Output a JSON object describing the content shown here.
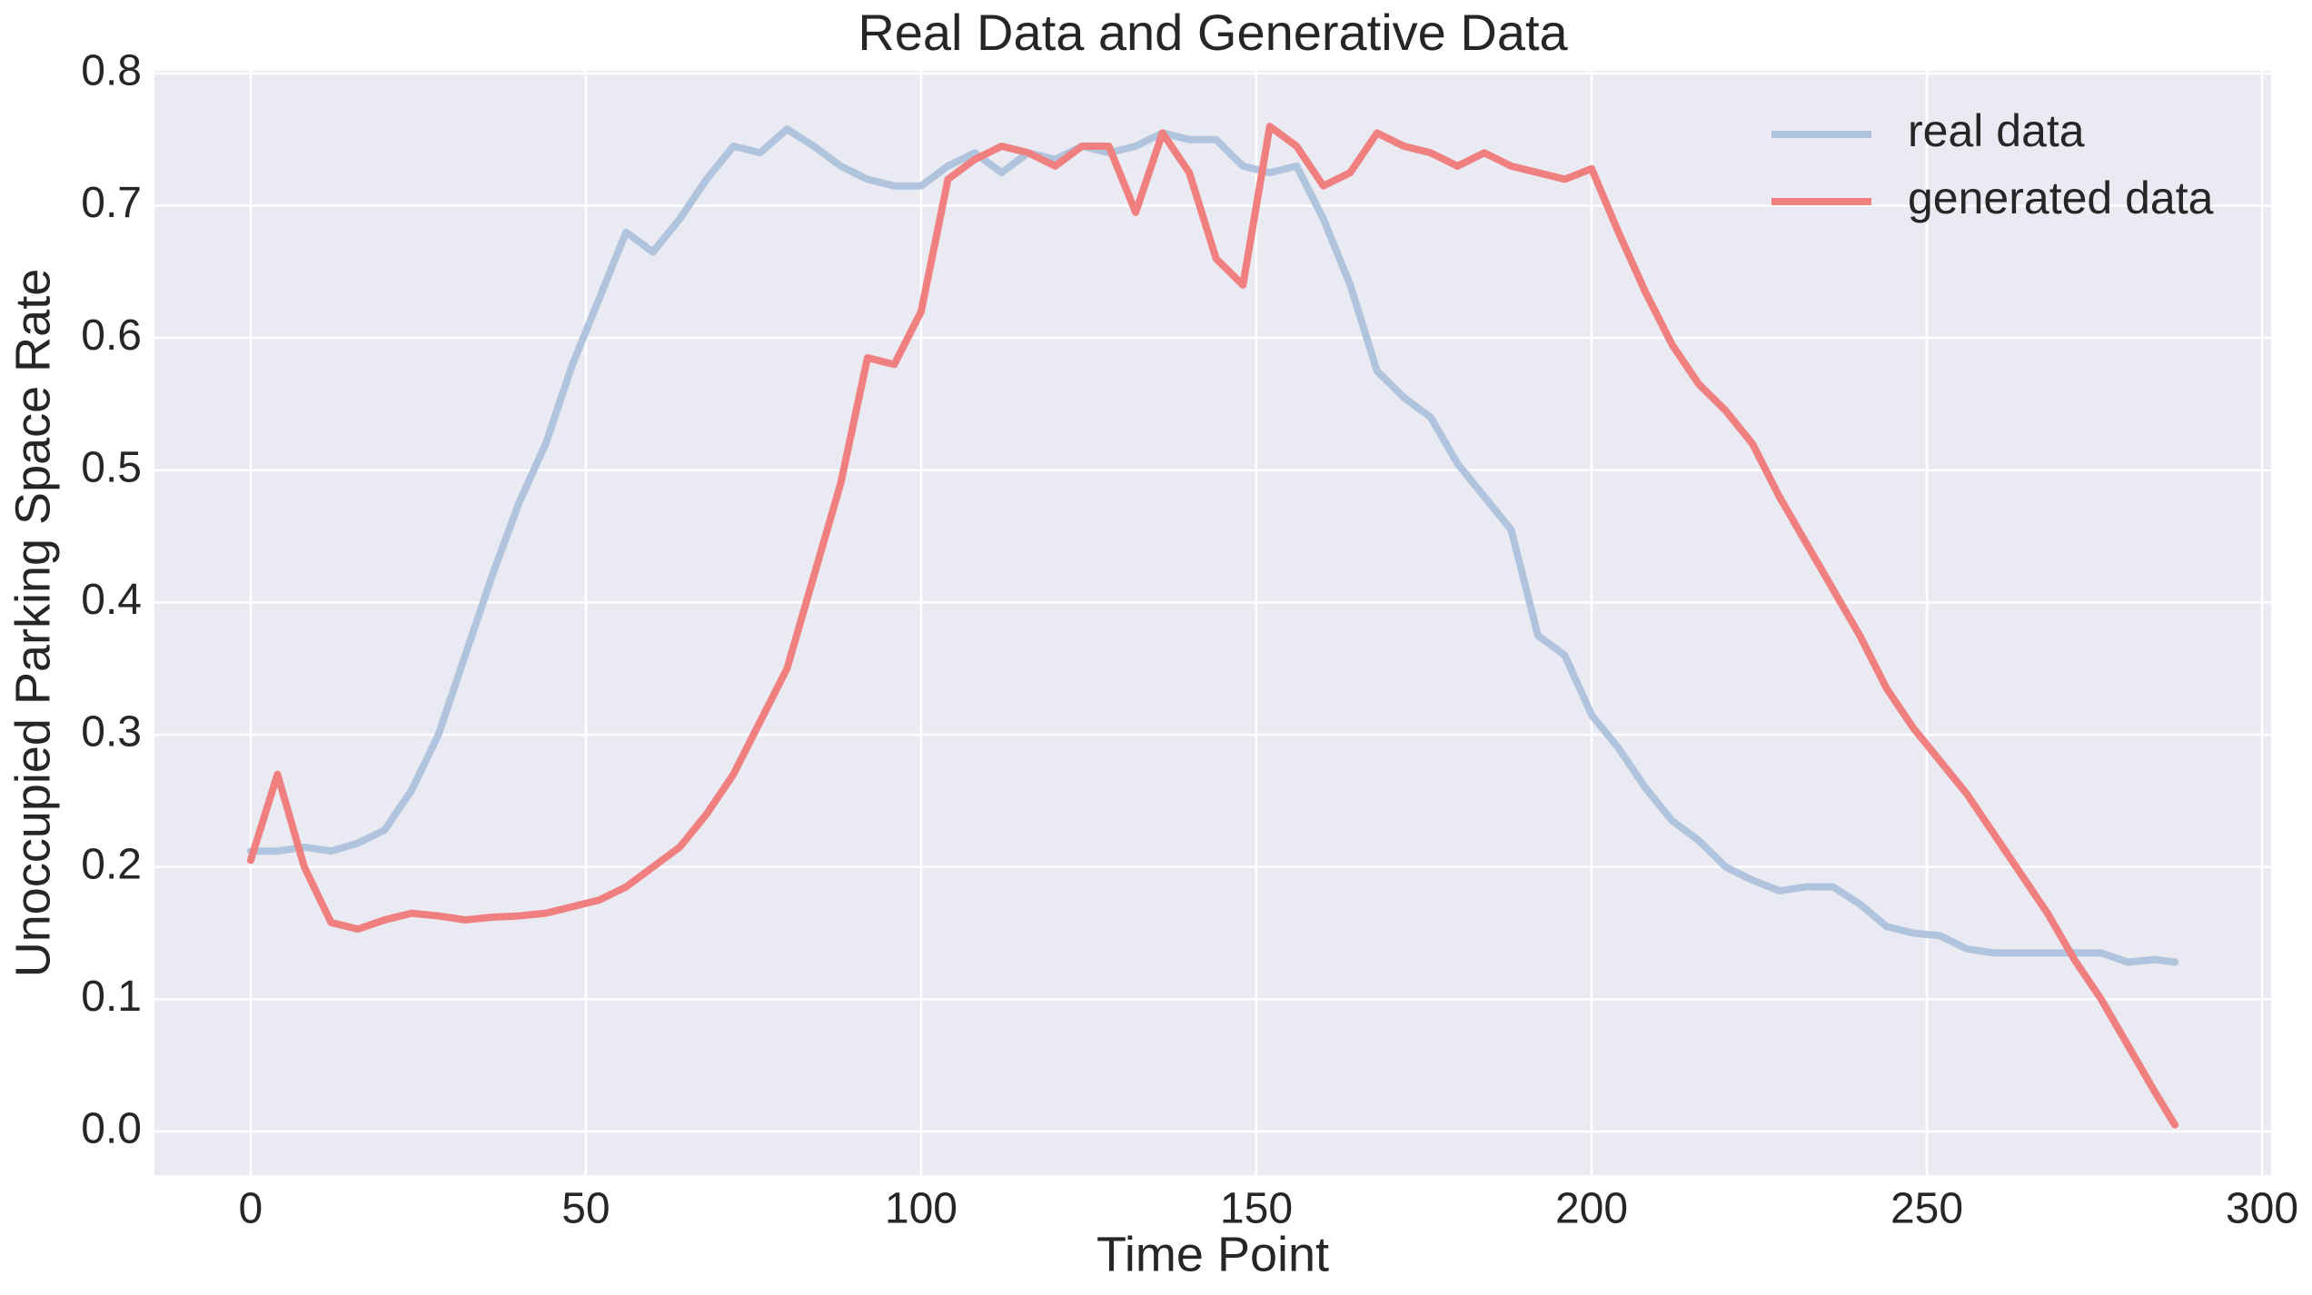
{
  "chart_data": {
    "type": "line",
    "title": "Real Data and Generative Data",
    "x_label": "Time Point",
    "y_label": "Unoccupied Parking Space Rate",
    "x": [
      0,
      4,
      8,
      12,
      16,
      20,
      24,
      28,
      32,
      36,
      40,
      44,
      48,
      52,
      56,
      60,
      64,
      68,
      72,
      76,
      80,
      84,
      88,
      92,
      96,
      100,
      104,
      108,
      112,
      116,
      120,
      124,
      128,
      132,
      136,
      140,
      144,
      148,
      152,
      156,
      160,
      164,
      168,
      172,
      176,
      180,
      184,
      188,
      192,
      196,
      200,
      204,
      208,
      212,
      216,
      220,
      224,
      228,
      232,
      236,
      240,
      244,
      248,
      252,
      256,
      260,
      264,
      268,
      272,
      276,
      280,
      284,
      287
    ],
    "series": [
      {
        "name": "real data",
        "color": "#b0c4de",
        "values": [
          0.212,
          0.212,
          0.215,
          0.212,
          0.218,
          0.228,
          0.258,
          0.3,
          0.36,
          0.42,
          0.475,
          0.52,
          0.58,
          0.63,
          0.68,
          0.665,
          0.69,
          0.72,
          0.745,
          0.74,
          0.758,
          0.745,
          0.73,
          0.72,
          0.715,
          0.715,
          0.73,
          0.74,
          0.725,
          0.74,
          0.735,
          0.745,
          0.74,
          0.745,
          0.755,
          0.75,
          0.75,
          0.73,
          0.725,
          0.73,
          0.69,
          0.64,
          0.575,
          0.555,
          0.54,
          0.505,
          0.48,
          0.455,
          0.375,
          0.36,
          0.315,
          0.29,
          0.26,
          0.235,
          0.22,
          0.2,
          0.19,
          0.182,
          0.185,
          0.185,
          0.172,
          0.155,
          0.15,
          0.148,
          0.138,
          0.135,
          0.135,
          0.135,
          0.135,
          0.135,
          0.128,
          0.13,
          0.128
        ]
      },
      {
        "name": "generated data",
        "color": "#f08080",
        "values": [
          0.205,
          0.27,
          0.2,
          0.158,
          0.153,
          0.16,
          0.165,
          0.163,
          0.16,
          0.162,
          0.163,
          0.165,
          0.17,
          0.175,
          0.185,
          0.2,
          0.215,
          0.24,
          0.27,
          0.31,
          0.35,
          0.42,
          0.49,
          0.585,
          0.58,
          0.62,
          0.72,
          0.735,
          0.745,
          0.74,
          0.73,
          0.745,
          0.745,
          0.695,
          0.755,
          0.725,
          0.66,
          0.64,
          0.76,
          0.745,
          0.715,
          0.725,
          0.755,
          0.745,
          0.74,
          0.73,
          0.74,
          0.73,
          0.725,
          0.72,
          0.728,
          0.68,
          0.635,
          0.595,
          0.565,
          0.545,
          0.52,
          0.48,
          0.445,
          0.41,
          0.375,
          0.335,
          0.305,
          0.28,
          0.255,
          0.225,
          0.195,
          0.165,
          0.13,
          0.1,
          0.065,
          0.03,
          0.005
        ]
      }
    ],
    "xlim": [
      -14.35,
      301.35
    ],
    "ylim": [
      -0.033,
      0.802
    ],
    "xticks": [
      0,
      50,
      100,
      150,
      200,
      250,
      300
    ],
    "yticks": [
      {
        "value": 0,
        "label": "0.0"
      },
      0.1,
      0.2,
      0.3,
      0.4,
      0.5,
      0.6,
      0.7,
      0.8
    ],
    "grid": true,
    "legend": "upper right"
  }
}
